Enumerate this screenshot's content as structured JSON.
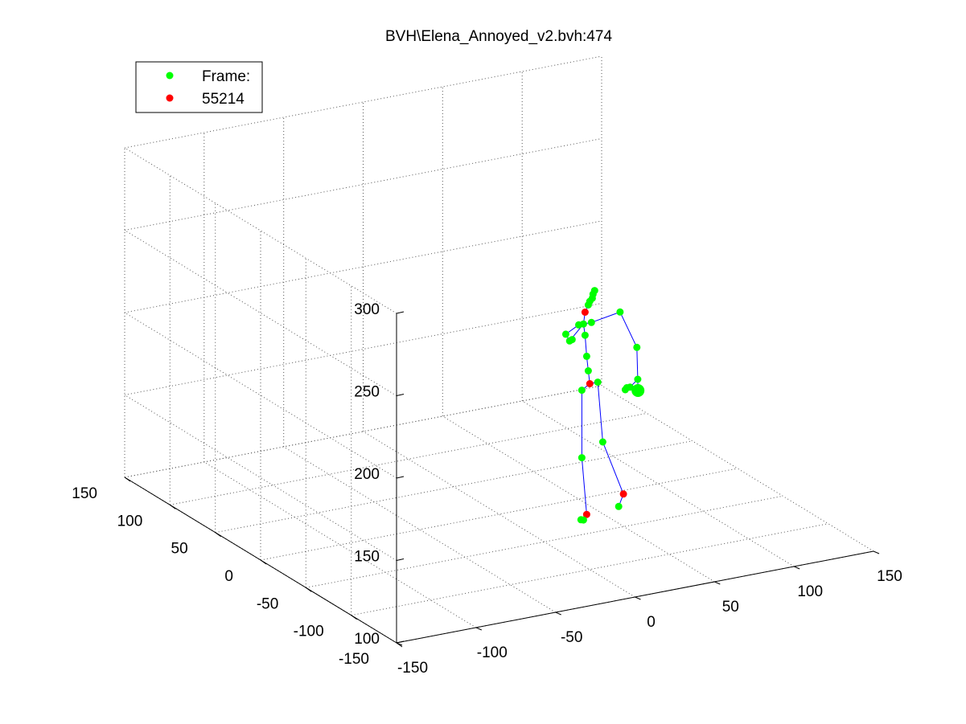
{
  "colors": {
    "background": "#ffffff",
    "bone": "#0000ff",
    "joint": "#00ff00",
    "root_joint": "#ff0000",
    "grid": "#555555"
  },
  "chart_data": {
    "type": "scatter",
    "view": "3d",
    "title": "BVH\\Elena_Annoyed_v2.bvh:474",
    "grid": true,
    "legend": {
      "placement": "top-left",
      "entries": [
        {
          "label": "Frame:",
          "color": "#00ff00",
          "marker": "dot"
        },
        {
          "label": "55214",
          "color": "#ff0000",
          "marker": "dot"
        }
      ]
    },
    "axes": {
      "x": {
        "range": [
          -150,
          150
        ],
        "ticks": [
          -150,
          -100,
          -50,
          0,
          50,
          100,
          150
        ],
        "tick_labels": [
          "-150",
          "-100",
          "-50",
          "0",
          "50",
          "100",
          "150"
        ]
      },
      "y": {
        "range": [
          -150,
          150
        ],
        "ticks": [
          -150,
          -100,
          -50,
          0,
          50,
          100,
          150
        ],
        "tick_labels": [
          "-150",
          "-100",
          "-50",
          "0",
          "50",
          "100",
          "150"
        ]
      },
      "z": {
        "range": [
          100,
          300
        ],
        "ticks": [
          100,
          150,
          200,
          250,
          300
        ],
        "tick_labels": [
          "100",
          "150",
          "200",
          "250",
          "300"
        ]
      }
    },
    "joints": [
      {
        "name": "head-top-1",
        "x": 92,
        "y": 56,
        "z": 200,
        "kind": "joint"
      },
      {
        "name": "head-top-2",
        "x": 91,
        "y": 56,
        "z": 198,
        "kind": "joint"
      },
      {
        "name": "head-top-3",
        "x": 90,
        "y": 55,
        "z": 196,
        "kind": "joint"
      },
      {
        "name": "head-top-4",
        "x": 89,
        "y": 56,
        "z": 194,
        "kind": "joint"
      },
      {
        "name": "head-top-5",
        "x": 88,
        "y": 56,
        "z": 192,
        "kind": "joint"
      },
      {
        "name": "head",
        "x": 86,
        "y": 56,
        "z": 188,
        "kind": "root"
      },
      {
        "name": "neck",
        "x": 85,
        "y": 56,
        "z": 181,
        "kind": "joint"
      },
      {
        "name": "l-clavicle",
        "x": 82,
        "y": 56,
        "z": 181,
        "kind": "joint"
      },
      {
        "name": "r-clavicle",
        "x": 90,
        "y": 56,
        "z": 181,
        "kind": "joint"
      },
      {
        "name": "l-shoulder",
        "x": 75,
        "y": 58,
        "z": 176,
        "kind": "joint"
      },
      {
        "name": "l-elbow",
        "x": 78,
        "y": 59,
        "z": 171,
        "kind": "joint"
      },
      {
        "name": "l-wrist",
        "x": 79,
        "y": 58,
        "z": 172,
        "kind": "joint"
      },
      {
        "name": "r-shoulder",
        "x": 108,
        "y": 56,
        "z": 184,
        "kind": "joint"
      },
      {
        "name": "r-elbow",
        "x": 118,
        "y": 55,
        "z": 161,
        "kind": "joint"
      },
      {
        "name": "r-wrist",
        "x": 118,
        "y": 54,
        "z": 142,
        "kind": "joint"
      },
      {
        "name": "r-hand",
        "x": 117,
        "y": 52,
        "z": 136,
        "kind": "joint"
      },
      {
        "name": "r-finger-1",
        "x": 112,
        "y": 52,
        "z": 139,
        "kind": "joint"
      },
      {
        "name": "r-finger-2",
        "x": 110,
        "y": 52,
        "z": 139,
        "kind": "joint"
      },
      {
        "name": "r-finger-3",
        "x": 109,
        "y": 52,
        "z": 138,
        "kind": "joint"
      },
      {
        "name": "spine-3",
        "x": 86,
        "y": 56,
        "z": 174,
        "kind": "joint"
      },
      {
        "name": "spine-2",
        "x": 87,
        "y": 56,
        "z": 161,
        "kind": "joint"
      },
      {
        "name": "spine-1",
        "x": 88,
        "y": 56,
        "z": 152,
        "kind": "joint"
      },
      {
        "name": "hips",
        "x": 89,
        "y": 56,
        "z": 144,
        "kind": "root"
      },
      {
        "name": "l-hip",
        "x": 84,
        "y": 56,
        "z": 141,
        "kind": "joint"
      },
      {
        "name": "r-hip",
        "x": 94,
        "y": 56,
        "z": 144,
        "kind": "joint"
      },
      {
        "name": "l-knee",
        "x": 84,
        "y": 56,
        "z": 100,
        "kind": "joint"
      },
      {
        "name": "r-knee",
        "x": 96,
        "y": 54,
        "z": 108,
        "kind": "joint"
      },
      {
        "name": "l-ankle",
        "x": 87,
        "y": 56,
        "z": 65,
        "kind": "root"
      },
      {
        "name": "r-ankle",
        "x": 109,
        "y": 54,
        "z": 74,
        "kind": "root"
      },
      {
        "name": "l-toe",
        "x": 85,
        "y": 56,
        "z": 62,
        "kind": "joint"
      },
      {
        "name": "l-toe-tip",
        "x": 84,
        "y": 57,
        "z": 62,
        "kind": "joint"
      },
      {
        "name": "r-toe",
        "x": 106,
        "y": 54,
        "z": 67,
        "kind": "joint"
      }
    ],
    "bones": [
      [
        "head-top-5",
        "head"
      ],
      [
        "head",
        "neck"
      ],
      [
        "neck",
        "l-clavicle"
      ],
      [
        "neck",
        "r-clavicle"
      ],
      [
        "l-clavicle",
        "l-shoulder"
      ],
      [
        "l-shoulder",
        "l-elbow"
      ],
      [
        "neck",
        "l-elbow"
      ],
      [
        "r-clavicle",
        "r-shoulder"
      ],
      [
        "r-shoulder",
        "r-elbow"
      ],
      [
        "r-elbow",
        "r-wrist"
      ],
      [
        "r-wrist",
        "r-hand"
      ],
      [
        "r-wrist",
        "r-finger-1"
      ],
      [
        "neck",
        "spine-3"
      ],
      [
        "spine-3",
        "spine-2"
      ],
      [
        "spine-2",
        "spine-1"
      ],
      [
        "spine-1",
        "hips"
      ],
      [
        "hips",
        "l-hip"
      ],
      [
        "hips",
        "r-hip"
      ],
      [
        "l-hip",
        "l-knee"
      ],
      [
        "l-knee",
        "l-ankle"
      ],
      [
        "r-hip",
        "r-knee"
      ],
      [
        "r-knee",
        "r-ankle"
      ],
      [
        "l-ankle",
        "l-toe"
      ],
      [
        "r-ankle",
        "r-toe"
      ]
    ]
  }
}
